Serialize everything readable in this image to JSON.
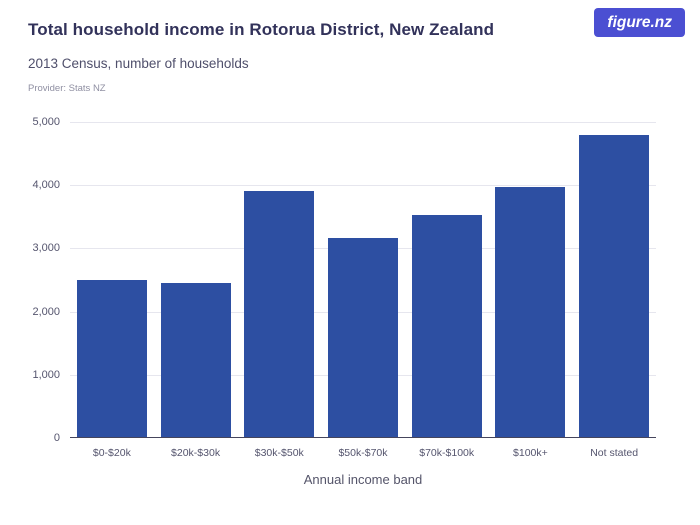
{
  "header": {
    "title": "Total household income in Rotorua District, New Zealand",
    "subtitle": "2013 Census, number of households",
    "provider": "Provider: Stats NZ",
    "logo_main": "figure",
    "logo_suffix": ".nz"
  },
  "colors": {
    "bar": "#2d4fa2",
    "logo_bg": "#4b4fd2",
    "gridline": "#e6e6ee",
    "axis": "#45455c",
    "title": "#32325a"
  },
  "chart_data": {
    "type": "bar",
    "title": "Total household income in Rotorua District, New Zealand",
    "subtitle": "2013 Census, number of households",
    "categories": [
      "$0-$20k",
      "$20k-$30k",
      "$30k-$50k",
      "$50k-$70k",
      "$70k-$100k",
      "$100k+",
      "Not stated"
    ],
    "values": [
      2480,
      2430,
      3890,
      3150,
      3520,
      3950,
      4780
    ],
    "xlabel": "Annual income band",
    "ylabel": "",
    "ylim": [
      0,
      5000
    ],
    "yticks": [
      0,
      1000,
      2000,
      3000,
      4000,
      5000
    ],
    "grid": true,
    "legend": false
  }
}
